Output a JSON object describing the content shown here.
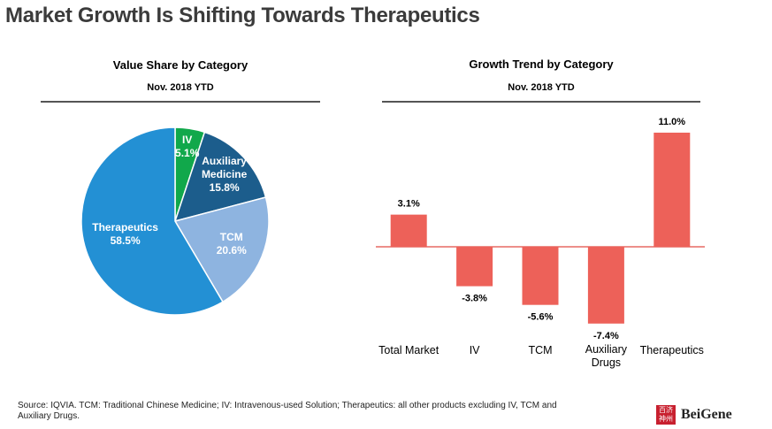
{
  "page": {
    "title": "Market Growth Is Shifting Towards Therapeutics",
    "footnote": "Source: IQVIA. TCM: Traditional Chinese Medicine; IV: Intravenous-used Solution; Therapeutics: all other products excluding IV, TCM and Auxiliary Drugs.",
    "logo": {
      "mark": "百济神州",
      "text": "BeiGene"
    }
  },
  "colors": {
    "iv": "#11a84b",
    "auxiliary": "#1c5d8c",
    "tcm": "#8eb4e0",
    "therapeutics": "#2390d4",
    "bar": "#ed6159"
  },
  "chart_data": [
    {
      "type": "pie",
      "title": "Value Share by Category",
      "subtitle": "Nov. 2018 YTD",
      "slices": [
        {
          "label": "IV",
          "value": 5.1,
          "value_label": "5.1%",
          "color": "#11a84b"
        },
        {
          "label": "Auxiliary Medicine",
          "value": 15.8,
          "value_label": "15.8%",
          "color": "#1c5d8c"
        },
        {
          "label": "TCM",
          "value": 20.6,
          "value_label": "20.6%",
          "color": "#8eb4e0"
        },
        {
          "label": "Therapeutics",
          "value": 58.5,
          "value_label": "58.5%",
          "color": "#2390d4"
        }
      ]
    },
    {
      "type": "bar",
      "title": "Growth Trend by Category",
      "subtitle": "Nov. 2018 YTD",
      "categories": [
        "Total Market",
        "IV",
        "TCM",
        "Auxiliary Drugs",
        "Therapeutics"
      ],
      "values": [
        3.1,
        -3.8,
        -5.6,
        -7.4,
        11.0
      ],
      "value_labels": [
        "3.1%",
        "-3.8%",
        "-5.6%",
        "-7.4%",
        "11.0%"
      ],
      "color": "#ed6159"
    }
  ]
}
